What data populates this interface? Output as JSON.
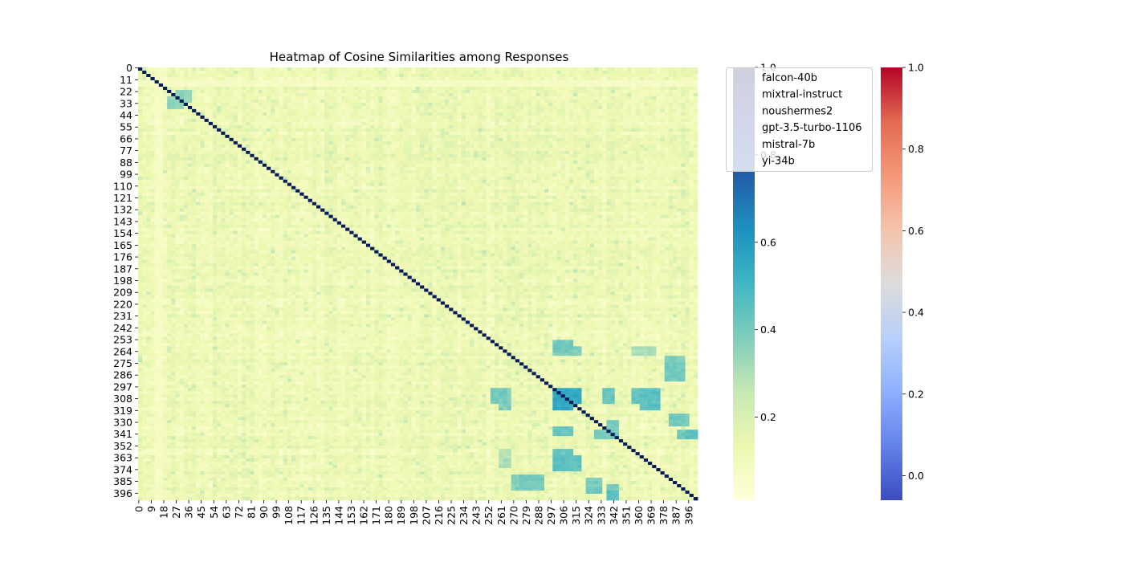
{
  "chart_data": {
    "type": "heatmap",
    "title": "Heatmap of Cosine Similarities among Responses",
    "n": 403,
    "bin_size": 3,
    "xtick_labels": [
      "0",
      "9",
      "18",
      "27",
      "36",
      "45",
      "54",
      "63",
      "72",
      "81",
      "90",
      "99",
      "108",
      "117",
      "126",
      "135",
      "144",
      "153",
      "162",
      "171",
      "180",
      "189",
      "198",
      "207",
      "216",
      "225",
      "234",
      "243",
      "252",
      "261",
      "270",
      "279",
      "288",
      "297",
      "306",
      "315",
      "324",
      "333",
      "342",
      "351",
      "360",
      "369",
      "378",
      "387",
      "396"
    ],
    "ytick_labels": [
      "0",
      "11",
      "22",
      "33",
      "44",
      "55",
      "66",
      "77",
      "88",
      "99",
      "110",
      "121",
      "132",
      "143",
      "154",
      "165",
      "176",
      "187",
      "198",
      "209",
      "220",
      "231",
      "242",
      "253",
      "264",
      "275",
      "286",
      "297",
      "308",
      "319",
      "330",
      "341",
      "352",
      "363",
      "374",
      "385",
      "396"
    ],
    "diagonal_value": 1.0,
    "background_range": [
      0.05,
      0.25
    ],
    "highlighted_blocks": [
      {
        "rows": [
          21,
          30
        ],
        "cols": [
          27,
          36
        ],
        "value": 0.35
      },
      {
        "rows": [
          30,
          36
        ],
        "cols": [
          21,
          30
        ],
        "value": 0.32
      },
      {
        "rows": [
          261,
          268
        ],
        "cols": [
          300,
          318
        ],
        "value": 0.38
      },
      {
        "rows": [
          261,
          268
        ],
        "cols": [
          357,
          372
        ],
        "value": 0.3
      },
      {
        "rows": [
          299,
          312
        ],
        "cols": [
          255,
          264
        ],
        "value": 0.4
      },
      {
        "rows": [
          299,
          312
        ],
        "cols": [
          300,
          318
        ],
        "value": 0.55
      },
      {
        "rows": [
          299,
          312
        ],
        "cols": [
          336,
          342
        ],
        "value": 0.42
      },
      {
        "rows": [
          299,
          312
        ],
        "cols": [
          357,
          372
        ],
        "value": 0.42
      },
      {
        "rows": [
          330,
          345
        ],
        "cols": [
          339,
          345
        ],
        "value": 0.4
      },
      {
        "rows": [
          338,
          345
        ],
        "cols": [
          396,
          402
        ],
        "value": 0.45
      },
      {
        "rows": [
          363,
          377
        ],
        "cols": [
          300,
          318
        ],
        "value": 0.45
      },
      {
        "rows": [
          380,
          395
        ],
        "cols": [
          276,
          291
        ],
        "value": 0.4
      },
      {
        "rows": [
          382,
          398
        ],
        "cols": [
          324,
          333
        ],
        "value": 0.4
      },
      {
        "rows": [
          388,
          400
        ],
        "cols": [
          339,
          345
        ],
        "value": 0.4
      },
      {
        "rows": [
          268,
          280
        ],
        "cols": [
          381,
          393
        ],
        "value": 0.38
      }
    ],
    "light_rows": [
      12,
      13,
      14
    ],
    "colorbar1": {
      "cmap": "YlGnBu",
      "range": [
        0.01,
        1.0
      ],
      "ticks": [
        "0.2",
        "0.4",
        "0.6",
        "0.8",
        "1.0"
      ],
      "tick_values": [
        0.2,
        0.4,
        0.6,
        0.8,
        1.0
      ]
    },
    "colorbar2": {
      "cmap": "coolwarm",
      "range": [
        -0.06,
        1.0
      ],
      "ticks": [
        "0.0",
        "0.2",
        "0.4",
        "0.6",
        "0.8",
        "1.0"
      ],
      "tick_values": [
        0.0,
        0.2,
        0.4,
        0.6,
        0.8,
        1.0
      ]
    },
    "legend": {
      "position": "upper-right",
      "entries": [
        "falcon-40b",
        "mixtral-instruct",
        "noushermes2",
        "gpt-3.5-turbo-1106",
        "mistral-7b",
        "yi-34b"
      ]
    }
  }
}
